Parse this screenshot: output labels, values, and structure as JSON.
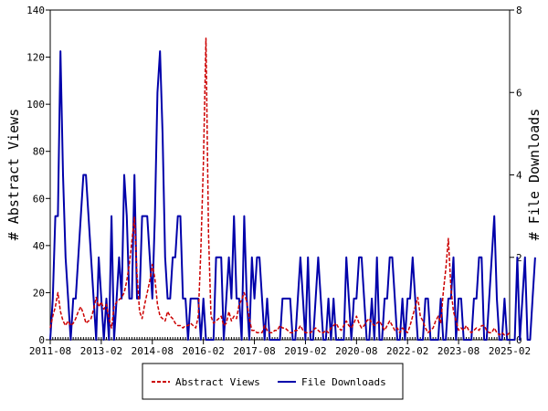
{
  "chart_data": {
    "type": "line",
    "title": "",
    "xlabel": "",
    "ylabel": "# Abstract Views",
    "y2label": "# File Downloads",
    "ylim": [
      0,
      140
    ],
    "y2lim": [
      0,
      8
    ],
    "yticks": [
      "0",
      "20",
      "40",
      "60",
      "80",
      "100",
      "120",
      "140"
    ],
    "y2ticks": [
      "0",
      "2",
      "4",
      "6",
      "8"
    ],
    "xticks": [
      "2011-08",
      "2013-02",
      "2014-08",
      "2016-02",
      "2017-08",
      "2019-02",
      "2020-08",
      "2022-02",
      "2023-08",
      "2025-02"
    ],
    "grid": false,
    "legend_position": "bottom",
    "series": [
      {
        "name": "Abstract Views",
        "axis": "left",
        "color": "#cc0000",
        "style": "dashed",
        "values": [
          5,
          10,
          14,
          20,
          12,
          8,
          6,
          8,
          6,
          7,
          9,
          12,
          14,
          11,
          7,
          8,
          9,
          13,
          18,
          14,
          16,
          13,
          15,
          9,
          5,
          14,
          16,
          17,
          18,
          20,
          25,
          32,
          42,
          52,
          28,
          12,
          9,
          15,
          20,
          25,
          32,
          26,
          15,
          10,
          9,
          8,
          12,
          10,
          9,
          7,
          6,
          6,
          5,
          6,
          6,
          7,
          6,
          5,
          10,
          38,
          75,
          128,
          45,
          10,
          7,
          8,
          9,
          10,
          6,
          7,
          12,
          8,
          10,
          9,
          15,
          17,
          20,
          16,
          9,
          4,
          4,
          3,
          3,
          3,
          6,
          4,
          3,
          3,
          4,
          4,
          6,
          5,
          5,
          4,
          3,
          3,
          4,
          4,
          6,
          4,
          3,
          3,
          3,
          4,
          5,
          4,
          3,
          3,
          4,
          3,
          5,
          6,
          7,
          5,
          4,
          6,
          8,
          6,
          5,
          7,
          10,
          7,
          5,
          6,
          8,
          9,
          7,
          6,
          7,
          8,
          6,
          4,
          6,
          8,
          6,
          4,
          5,
          3,
          5,
          4,
          3,
          6,
          10,
          14,
          18,
          10,
          8,
          5,
          3,
          4,
          5,
          8,
          10,
          7,
          20,
          30,
          43,
          22,
          12,
          8,
          4,
          5,
          4,
          6,
          4,
          3,
          4,
          5,
          4,
          6,
          6,
          4,
          3,
          3,
          5,
          3,
          2,
          3,
          2,
          2,
          3
        ]
      },
      {
        "name": "File Downloads",
        "axis": "right",
        "color": "#0000aa",
        "style": "solid",
        "values": [
          0,
          1,
          3,
          3,
          7,
          4,
          2,
          1,
          0,
          1,
          1,
          2,
          3,
          4,
          4,
          3,
          2,
          1,
          0,
          2,
          1,
          0,
          1,
          0,
          3,
          0,
          1,
          2,
          1,
          4,
          3,
          1,
          1,
          4,
          1,
          1,
          3,
          3,
          3,
          2,
          1,
          3,
          6,
          7,
          5,
          2,
          1,
          1,
          2,
          2,
          3,
          3,
          1,
          1,
          0,
          1,
          1,
          1,
          1,
          0,
          1,
          0,
          0,
          0,
          0,
          2,
          2,
          2,
          0,
          1,
          2,
          1,
          3,
          1,
          1,
          0,
          3,
          1,
          0,
          2,
          1,
          2,
          2,
          1,
          0,
          1,
          0,
          0,
          0,
          0,
          0,
          1,
          1,
          1,
          1,
          0,
          0,
          1,
          2,
          1,
          0,
          2,
          0,
          0,
          1,
          2,
          1,
          0,
          0,
          1,
          0,
          1,
          0,
          0,
          0,
          0,
          2,
          1,
          0,
          1,
          1,
          2,
          2,
          1,
          0,
          0,
          1,
          0,
          2,
          0,
          0,
          1,
          1,
          2,
          2,
          1,
          0,
          0,
          1,
          0,
          1,
          1,
          2,
          1,
          0,
          0,
          0,
          1,
          1,
          0,
          0,
          0,
          0,
          1,
          0,
          0,
          1,
          1,
          2,
          0,
          1,
          1,
          0,
          0,
          0,
          0,
          1,
          1,
          2,
          2,
          0,
          0,
          1,
          2,
          3,
          1,
          0,
          0,
          1,
          0,
          0,
          0,
          0,
          2,
          0,
          1,
          2,
          0,
          0,
          1,
          2
        ]
      }
    ]
  }
}
